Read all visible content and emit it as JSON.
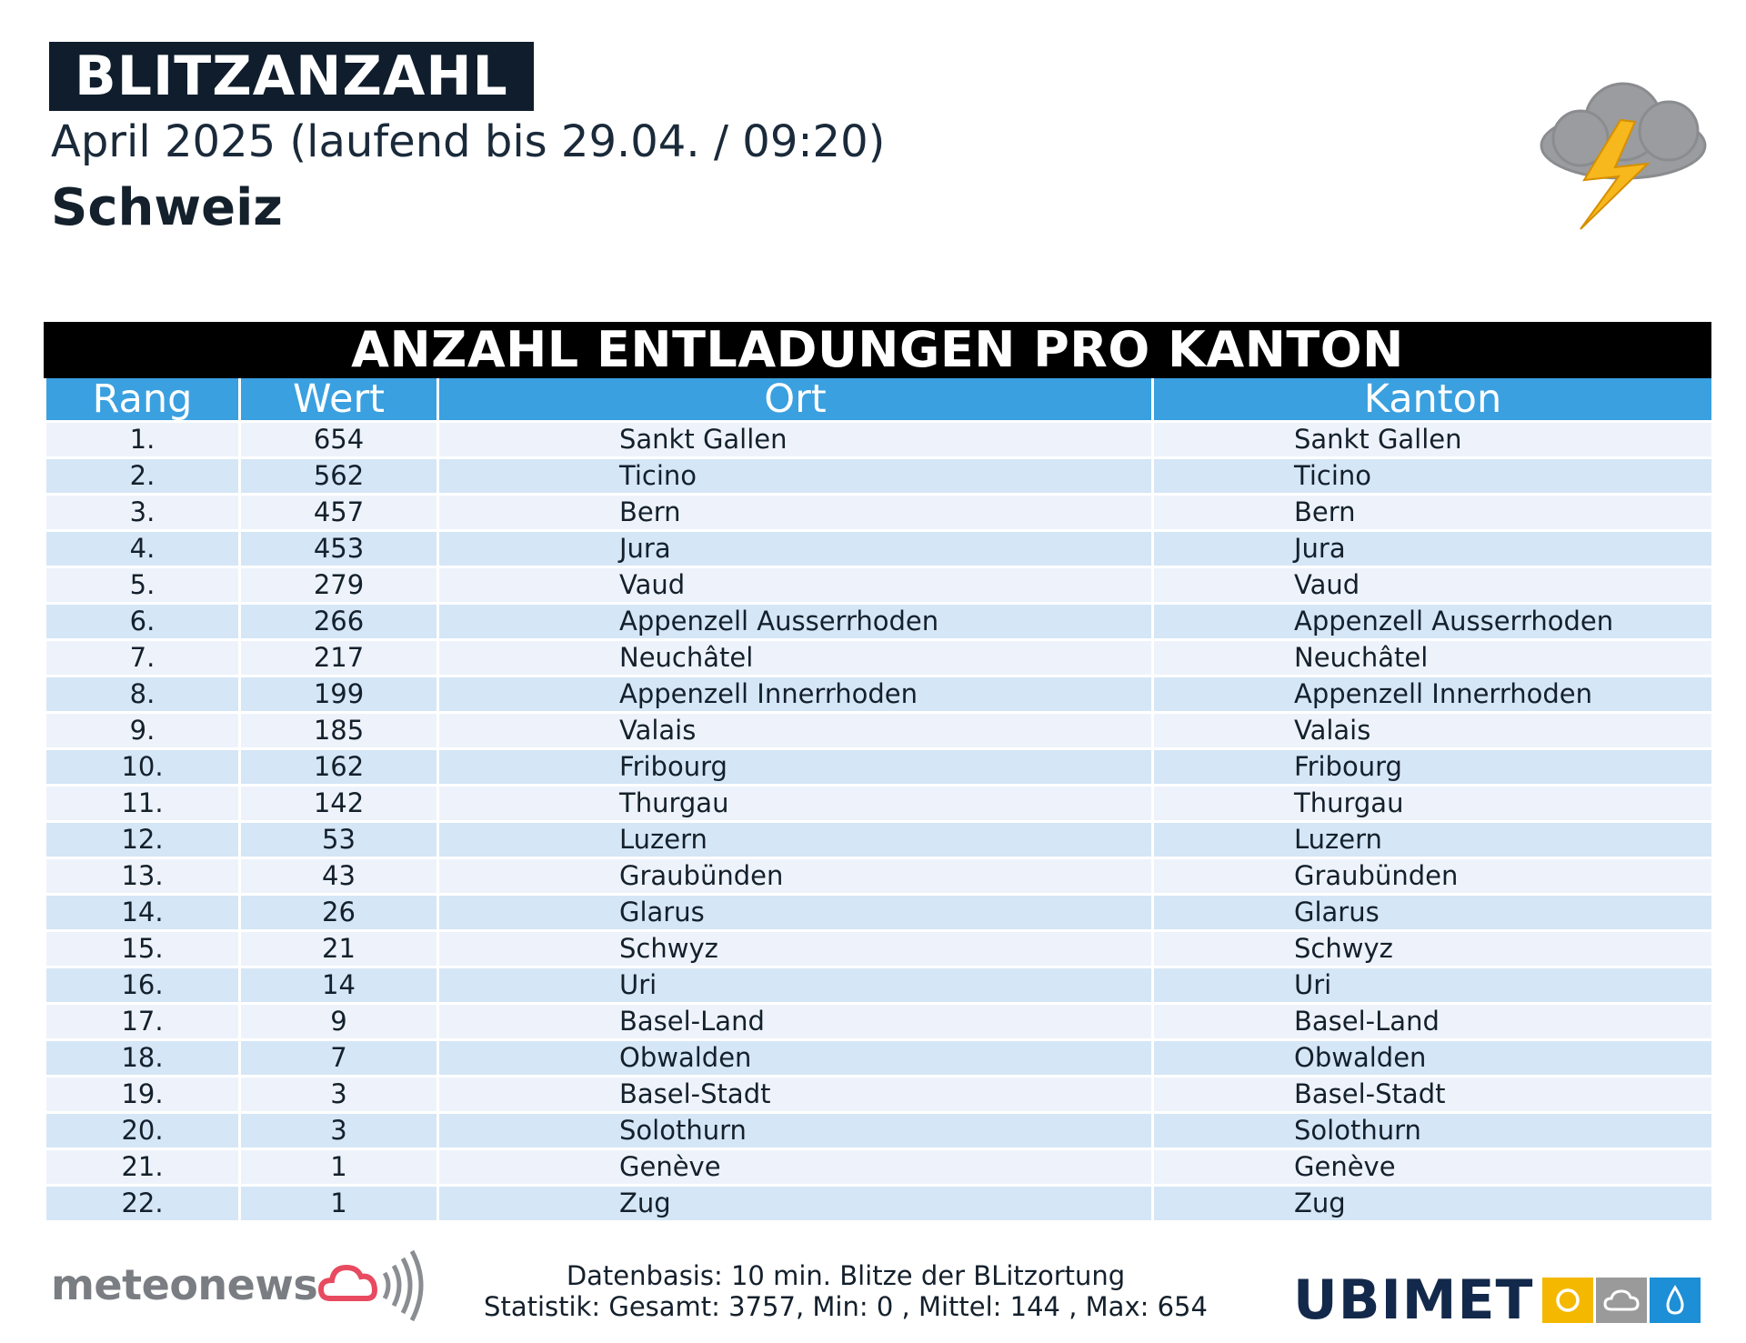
{
  "header": {
    "title": "BLITZANZAHL",
    "subtitle": "April 2025 (laufend bis 29.04. / 09:20)",
    "region": "Schweiz"
  },
  "icons": {
    "weather": "thunderstorm-cloud-icon",
    "meteonews": "cloud-signal-icon",
    "ubimet": [
      "sun-icon",
      "cloud-icon",
      "drop-icon"
    ]
  },
  "colors": {
    "header_blue": "#3aa0e0",
    "row_light": "#eef3fb",
    "row_dark": "#d5e6f6",
    "ubimet_yellow": "#f5b800",
    "ubimet_gray": "#9a9a9a",
    "ubimet_blue": "#1c8fd6"
  },
  "table": {
    "title": "ANZAHL ENTLADUNGEN PRO KANTON",
    "columns": [
      "Rang",
      "Wert",
      "Ort",
      "Kanton"
    ],
    "rows": [
      [
        "1.",
        "654",
        "Sankt Gallen",
        "Sankt Gallen"
      ],
      [
        "2.",
        "562",
        "Ticino",
        "Ticino"
      ],
      [
        "3.",
        "457",
        "Bern",
        "Bern"
      ],
      [
        "4.",
        "453",
        "Jura",
        "Jura"
      ],
      [
        "5.",
        "279",
        "Vaud",
        "Vaud"
      ],
      [
        "6.",
        "266",
        "Appenzell Ausserrhoden",
        "Appenzell Ausserrhoden"
      ],
      [
        "7.",
        "217",
        "Neuchâtel",
        "Neuchâtel"
      ],
      [
        "8.",
        "199",
        "Appenzell Innerrhoden",
        "Appenzell Innerrhoden"
      ],
      [
        "9.",
        "185",
        "Valais",
        "Valais"
      ],
      [
        "10.",
        "162",
        "Fribourg",
        "Fribourg"
      ],
      [
        "11.",
        "142",
        "Thurgau",
        "Thurgau"
      ],
      [
        "12.",
        "53",
        "Luzern",
        "Luzern"
      ],
      [
        "13.",
        "43",
        "Graubünden",
        "Graubünden"
      ],
      [
        "14.",
        "26",
        "Glarus",
        "Glarus"
      ],
      [
        "15.",
        "21",
        "Schwyz",
        "Schwyz"
      ],
      [
        "16.",
        "14",
        "Uri",
        "Uri"
      ],
      [
        "17.",
        "9",
        "Basel-Land",
        "Basel-Land"
      ],
      [
        "18.",
        "7",
        "Obwalden",
        "Obwalden"
      ],
      [
        "19.",
        "3",
        "Basel-Stadt",
        "Basel-Stadt"
      ],
      [
        "20.",
        "3",
        "Solothurn",
        "Solothurn"
      ],
      [
        "21.",
        "1",
        "Genève",
        "Genève"
      ],
      [
        "22.",
        "1",
        "Zug",
        "Zug"
      ]
    ]
  },
  "footer": {
    "line1": "Datenbasis: 10 min. Blitze der BLitzortung",
    "line2": "Statistik: Gesamt: 3757, Min: 0 , Mittel: 144 , Max: 654"
  },
  "logos": {
    "meteonews": "meteonews",
    "ubimet": "UBIMET"
  }
}
